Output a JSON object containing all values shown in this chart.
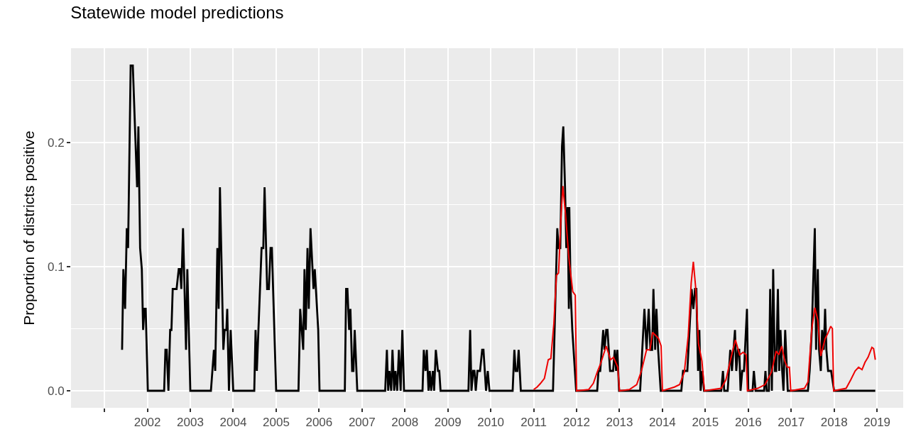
{
  "chart_data": {
    "type": "line",
    "title": "Statewide model predictions",
    "ylabel": "Proportion of districts positive",
    "xlim": [
      2000.22,
      2019.61
    ],
    "ylim": [
      -0.0137,
      0.276
    ],
    "xticks": [
      {
        "value": 2001,
        "label": null
      },
      {
        "value": 2002,
        "label": "2002"
      },
      {
        "value": 2003,
        "label": "2003"
      },
      {
        "value": 2004,
        "label": "2004"
      },
      {
        "value": 2005,
        "label": "2005"
      },
      {
        "value": 2006,
        "label": "2006"
      },
      {
        "value": 2007,
        "label": "2007"
      },
      {
        "value": 2008,
        "label": "2008"
      },
      {
        "value": 2009,
        "label": "2009"
      },
      {
        "value": 2010,
        "label": "2010"
      },
      {
        "value": 2011,
        "label": "2011"
      },
      {
        "value": 2012,
        "label": "2012"
      },
      {
        "value": 2013,
        "label": "2013"
      },
      {
        "value": 2014,
        "label": "2014"
      },
      {
        "value": 2015,
        "label": "2015"
      },
      {
        "value": 2016,
        "label": "2016"
      },
      {
        "value": 2017,
        "label": "2017"
      },
      {
        "value": 2018,
        "label": "2018"
      },
      {
        "value": 2019,
        "label": "2019"
      }
    ],
    "yticks": [
      {
        "value": 0,
        "label": "0.0"
      },
      {
        "value": 0.1,
        "label": "0.1"
      },
      {
        "value": 0.2,
        "label": "0.2"
      }
    ],
    "grid": true,
    "marker": "none",
    "line_style": "solid",
    "series": [
      {
        "color": "#000000",
        "x": [
          2001.41,
          2001.44,
          2001.48,
          2001.52,
          2001.55,
          2001.61,
          2001.66,
          2001.76,
          2001.79,
          2001.83,
          2001.87,
          2001.9,
          2001.93,
          2001.96,
          2002.01,
          2002.39,
          2002.42,
          2002.45,
          2002.49,
          2002.53,
          2002.56,
          2002.59,
          2002.68,
          2002.73,
          2002.76,
          2002.79,
          2002.83,
          2002.9,
          2002.93,
          2003.0,
          2003.48,
          2003.55,
          2003.58,
          2003.63,
          2003.66,
          2003.69,
          2003.77,
          2003.8,
          2003.84,
          2003.86,
          2003.9,
          2003.94,
          2004.0,
          2004.49,
          2004.52,
          2004.55,
          2004.66,
          2004.7,
          2004.73,
          2004.79,
          2004.83,
          2004.87,
          2004.9,
          2005.0,
          2005.52,
          2005.56,
          2005.63,
          2005.66,
          2005.69,
          2005.73,
          2005.76,
          2005.8,
          2005.87,
          2005.9,
          2005.98,
          2006.01,
          2006.6,
          2006.63,
          2006.66,
          2006.7,
          2006.73,
          2006.77,
          2006.8,
          2006.83,
          2006.89,
          2007.54,
          2007.58,
          2007.61,
          2007.64,
          2007.68,
          2007.71,
          2007.75,
          2007.78,
          2007.82,
          2007.86,
          2007.9,
          2007.94,
          2007.98,
          2008.41,
          2008.44,
          2008.48,
          2008.51,
          2008.55,
          2008.58,
          2008.61,
          2008.65,
          2008.68,
          2008.72,
          2008.77,
          2008.8,
          2008.83,
          2009.48,
          2009.52,
          2009.55,
          2009.59,
          2009.62,
          2009.65,
          2009.69,
          2009.75,
          2009.8,
          2009.83,
          2009.89,
          2009.93,
          2009.97,
          2010.51,
          2010.55,
          2010.58,
          2010.62,
          2010.65,
          2010.7,
          2011.45,
          2011.55,
          2011.58,
          2011.62,
          2011.66,
          2011.69,
          2011.73,
          2011.76,
          2011.79,
          2011.82,
          2011.83,
          2011.86,
          2011.9,
          2011.99,
          2012.48,
          2012.51,
          2012.55,
          2012.62,
          2012.65,
          2012.69,
          2012.72,
          2012.78,
          2012.85,
          2012.89,
          2012.92,
          2012.95,
          2012.97,
          2012.99,
          2013.48,
          2013.58,
          2013.63,
          2013.68,
          2013.72,
          2013.76,
          2013.79,
          2013.83,
          2013.86,
          2013.9,
          2013.96,
          2014.44,
          2014.48,
          2014.58,
          2014.68,
          2014.72,
          2014.76,
          2014.79,
          2014.83,
          2014.86,
          2014.89,
          2014.93,
          2014.97,
          2015.37,
          2015.41,
          2015.44,
          2015.52,
          2015.58,
          2015.62,
          2015.69,
          2015.72,
          2015.76,
          2015.79,
          2015.82,
          2015.86,
          2015.9,
          2015.97,
          2016.0,
          2016.1,
          2016.13,
          2016.17,
          2016.37,
          2016.4,
          2016.43,
          2016.48,
          2016.51,
          2016.55,
          2016.58,
          2016.62,
          2016.65,
          2016.69,
          2016.72,
          2016.75,
          2016.79,
          2016.82,
          2016.86,
          2016.92,
          2017.39,
          2017.43,
          2017.48,
          2017.55,
          2017.58,
          2017.62,
          2017.65,
          2017.69,
          2017.72,
          2017.76,
          2017.79,
          2017.82,
          2017.86,
          2017.93,
          2018.0,
          2018.96
        ],
        "values": [
          0.033,
          0.098,
          0.066,
          0.131,
          0.115,
          0.262,
          0.262,
          0.164,
          0.213,
          0.115,
          0.098,
          0.049,
          0.066,
          0.066,
          0,
          0,
          0.033,
          0.033,
          0,
          0.049,
          0.049,
          0.082,
          0.082,
          0.098,
          0.098,
          0.082,
          0.131,
          0.033,
          0.098,
          0,
          0,
          0.033,
          0.016,
          0.115,
          0.066,
          0.164,
          0.033,
          0.049,
          0.049,
          0.066,
          0,
          0.049,
          0,
          0,
          0.049,
          0.016,
          0.115,
          0.115,
          0.164,
          0.082,
          0.082,
          0.115,
          0.115,
          0,
          0,
          0.066,
          0.033,
          0.098,
          0.049,
          0.115,
          0.066,
          0.131,
          0.082,
          0.098,
          0.049,
          0,
          0,
          0.082,
          0.082,
          0.049,
          0.066,
          0.016,
          0.016,
          0.049,
          0,
          0,
          0.033,
          0,
          0.016,
          0,
          0.033,
          0,
          0.016,
          0,
          0.033,
          0,
          0.049,
          0,
          0,
          0.033,
          0.016,
          0.033,
          0,
          0.016,
          0,
          0.016,
          0,
          0.033,
          0.016,
          0.016,
          0,
          0,
          0.049,
          0,
          0.016,
          0.016,
          0,
          0.016,
          0.016,
          0.033,
          0.033,
          0,
          0.016,
          0,
          0,
          0.033,
          0.016,
          0.016,
          0.033,
          0,
          0,
          0.131,
          0.115,
          0.115,
          0.197,
          0.213,
          0.164,
          0.115,
          0.148,
          0.066,
          0.148,
          0.082,
          0.049,
          0,
          0,
          0.016,
          0.016,
          0.049,
          0.033,
          0.049,
          0.049,
          0.016,
          0.016,
          0.033,
          0.016,
          0.033,
          0.016,
          0,
          0,
          0.066,
          0.033,
          0.066,
          0.033,
          0.033,
          0.082,
          0.033,
          0.066,
          0.033,
          0,
          0,
          0.016,
          0.016,
          0.082,
          0.066,
          0.082,
          0.082,
          0.016,
          0.049,
          0,
          0.016,
          0,
          0,
          0.016,
          0,
          0,
          0.033,
          0.016,
          0.049,
          0.016,
          0.033,
          0.033,
          0,
          0.016,
          0.016,
          0.066,
          0,
          0,
          0.016,
          0,
          0,
          0.016,
          0,
          0,
          0.082,
          0,
          0.098,
          0.016,
          0.016,
          0.082,
          0.016,
          0.049,
          0.016,
          0,
          0.049,
          0,
          0,
          0.016,
          0.049,
          0.131,
          0.033,
          0.098,
          0.033,
          0.016,
          0.049,
          0.033,
          0.066,
          0.033,
          0.016,
          0.016,
          0,
          0
        ]
      },
      {
        "color": "#ee0000",
        "x": [
          2011.0,
          2011.08,
          2011.16,
          2011.25,
          2011.34,
          2011.4,
          2011.47,
          2011.53,
          2011.58,
          2011.64,
          2011.68,
          2011.74,
          2011.82,
          2011.91,
          2011.97,
          2012.0,
          2012.28,
          2012.39,
          2012.48,
          2012.56,
          2012.69,
          2012.79,
          2012.86,
          2012.96,
          2013.0,
          2013.23,
          2013.4,
          2013.51,
          2013.63,
          2013.71,
          2013.77,
          2013.86,
          2013.91,
          2013.97,
          2014.0,
          2014.28,
          2014.4,
          2014.51,
          2014.6,
          2014.67,
          2014.72,
          2014.78,
          2014.84,
          2014.92,
          2014.98,
          2015.37,
          2015.48,
          2015.62,
          2015.7,
          2015.8,
          2015.88,
          2015.95,
          2015.98,
          2016.22,
          2016.39,
          2016.54,
          2016.65,
          2016.71,
          2016.78,
          2016.85,
          2016.91,
          2016.96,
          2016.99,
          2017.31,
          2017.39,
          2017.48,
          2017.55,
          2017.62,
          2017.69,
          2017.79,
          2017.85,
          2017.92,
          2017.96,
          2017.99,
          2018.28,
          2018.39,
          2018.49,
          2018.57,
          2018.65,
          2018.72,
          2018.79,
          2018.88,
          2018.92,
          2018.96
        ],
        "values": [
          0.001,
          0.003,
          0.006,
          0.01,
          0.025,
          0.026,
          0.054,
          0.093,
          0.095,
          0.143,
          0.165,
          0.143,
          0.107,
          0.08,
          0.077,
          0,
          0.001,
          0.006,
          0.015,
          0.022,
          0.036,
          0.025,
          0.027,
          0.019,
          0,
          0.001,
          0.005,
          0.016,
          0.033,
          0.033,
          0.047,
          0.044,
          0.042,
          0.036,
          0,
          0.003,
          0.005,
          0.015,
          0.044,
          0.087,
          0.104,
          0.081,
          0.038,
          0.024,
          0,
          0.002,
          0.009,
          0.03,
          0.041,
          0.029,
          0.031,
          0.029,
          0,
          0.002,
          0.005,
          0.015,
          0.032,
          0.029,
          0.036,
          0.024,
          0.019,
          0.019,
          0,
          0.002,
          0.007,
          0.05,
          0.067,
          0.057,
          0.028,
          0.042,
          0.046,
          0.052,
          0.05,
          0,
          0.002,
          0.009,
          0.016,
          0.019,
          0.017,
          0.023,
          0.027,
          0.035,
          0.034,
          0.025
        ]
      }
    ]
  }
}
